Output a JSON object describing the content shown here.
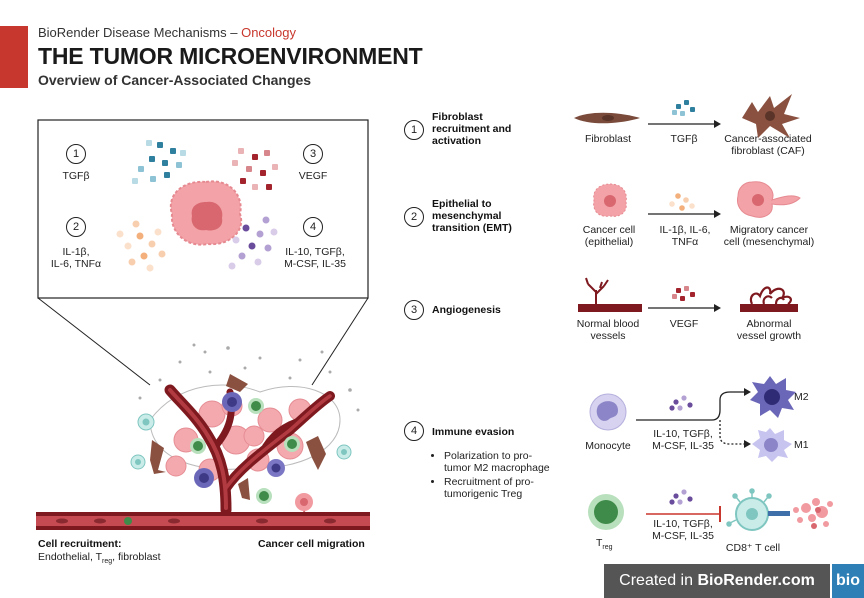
{
  "header": {
    "brand": "BioRender Disease Mechanisms",
    "dash": "–",
    "category": "Oncology",
    "title": "THE TUMOR MICROENVIRONMENT",
    "subtitle": "Overview of Cancer-Associated Changes"
  },
  "inset": {
    "items": [
      {
        "num": "1",
        "label": "TGFβ"
      },
      {
        "num": "2",
        "label": "IL-1β,\nIL-6, TNFα"
      },
      {
        "num": "3",
        "label": "VEGF"
      },
      {
        "num": "4",
        "label": "IL-10, TGFβ,\nM-CSF, IL-35"
      }
    ]
  },
  "scene": {
    "left_caption_bold": "Cell recruitment:",
    "left_caption_prefix": "Endothelial, T",
    "left_caption_sub": "reg",
    "left_caption_suffix": ", fibroblast",
    "right_caption": "Cancer cell migration"
  },
  "mechanisms": [
    {
      "num": "1",
      "title": "Fibroblast\nrecruitment and\nactivation",
      "source": "Fibroblast",
      "signal": "TGFβ",
      "result": "Cancer-associated\nfibroblast (CAF)"
    },
    {
      "num": "2",
      "title": "Epithelial to\nmesenchymal\ntransition (EMT)",
      "source": "Cancer cell\n(epithelial)",
      "signal": "IL-1β, IL-6,\nTNFα",
      "result": "Migratory cancer\ncell (mesenchymal)"
    },
    {
      "num": "3",
      "title": "Angiogenesis",
      "source": "Normal blood\nvessels",
      "signal": "VEGF",
      "result": "Abnormal\nvessel growth"
    },
    {
      "num": "4",
      "title": "Immune evasion",
      "bullets": [
        "Polarization to pro-\ntumor M2 macrophage",
        "Recruitment of pro-\ntumorigenic Treg"
      ],
      "source": "Monocyte",
      "signal": "IL-10, TGFβ,\nM-CSF, IL-35",
      "result_a": "M2",
      "result_b": "M1",
      "treg_label": "T",
      "treg_sub": "reg",
      "treg_signal": "IL-10, TGFβ,\nM-CSF, IL-35",
      "tcell_label": "CD8⁺ T cell"
    }
  ],
  "footer": {
    "prefix": "Created in",
    "brand": "BioRender.com",
    "logo": "bio"
  },
  "colors": {
    "accent_red": "#c8372d",
    "vessel": "#7e1a1f",
    "cancer_cell": "#f19aa0",
    "fibroblast": "#7a4a3a",
    "macrophage_m2": "#5a58a8",
    "macrophage_m1": "#b5b3e6",
    "tcell": "#c9ece9",
    "treg": "#3f8b4a",
    "footer_bg": "#555555",
    "logo_bg": "#2d7fb5"
  }
}
